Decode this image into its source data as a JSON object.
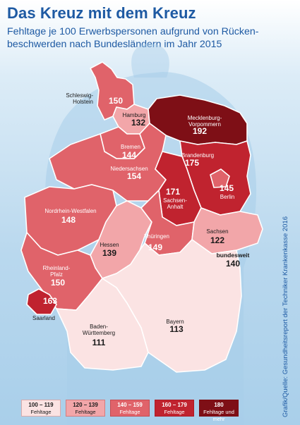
{
  "title": "Das Kreuz mit dem Kreuz",
  "subtitle": "Fehltage je 100 Erwerbspersonen aufgrund von Rücken-beschwerden nach Bundesländern im Jahr 2015",
  "source": "Grafik/Quelle: Gesundheitsreport der Techniker Krankenkasse 2016",
  "colors": {
    "c1": "#fbe3e3",
    "c2": "#f2a6a9",
    "c3": "#e0636a",
    "c4": "#c0232f",
    "c5": "#7e0f16",
    "text_dark": "#1a1a1a",
    "title": "#1e5aa3"
  },
  "chart_data": {
    "type": "choropleth",
    "unit": "Fehltage je 100 Erwerbspersonen",
    "regions": [
      {
        "name": "Schleswig-Holstein",
        "value": 150,
        "label": "Schleswig-\nHolstein",
        "value_label": "150",
        "class": 3
      },
      {
        "name": "Hamburg",
        "value": 132,
        "label": "Hamburg",
        "value_label": "132",
        "class": 2
      },
      {
        "name": "Mecklenburg-Vorpommern",
        "value": 192,
        "label": "Mecklenburg-\nVorpommern",
        "value_label": "192",
        "class": 5
      },
      {
        "name": "Bremen",
        "value": 144,
        "label": "Bremen",
        "value_label": "144",
        "class": 3
      },
      {
        "name": "Niedersachsen",
        "value": 154,
        "label": "Niedersachsen",
        "value_label": "154",
        "class": 3
      },
      {
        "name": "Brandenburg",
        "value": 175,
        "label": "Brandenburg",
        "value_label": "175",
        "class": 4
      },
      {
        "name": "Berlin",
        "value": 145,
        "label": "Berlin",
        "value_label": "145",
        "class": 3
      },
      {
        "name": "Sachsen-Anhalt",
        "value": 171,
        "label": "Sachsen-\nAnhalt",
        "value_label": "171",
        "class": 4
      },
      {
        "name": "Nordrhein-Westfalen",
        "value": 148,
        "label": "Nordrhein-Westfalen",
        "value_label": "148",
        "class": 3
      },
      {
        "name": "Hessen",
        "value": 139,
        "label": "Hessen",
        "value_label": "139",
        "class": 2
      },
      {
        "name": "Thüringen",
        "value": 149,
        "label": "Thüringen",
        "value_label": "149",
        "class": 3
      },
      {
        "name": "Sachsen",
        "value": 122,
        "label": "Sachsen",
        "value_label": "122",
        "class": 2
      },
      {
        "name": "Rheinland-Pfalz",
        "value": 150,
        "label": "Rheinland-\nPfalz",
        "value_label": "150",
        "class": 3
      },
      {
        "name": "Saarland",
        "value": 163,
        "label": "Saarland",
        "value_label": "163",
        "class": 4
      },
      {
        "name": "Baden-Württemberg",
        "value": 111,
        "label": "Baden-\nWürttemberg",
        "value_label": "111",
        "class": 1
      },
      {
        "name": "Bayern",
        "value": 113,
        "label": "Bayern",
        "value_label": "113",
        "class": 1
      }
    ],
    "national": {
      "label": "bundesweit",
      "value": 140,
      "value_label": "140"
    },
    "legend": [
      {
        "range": "100 – 119",
        "unit": "Fehltage",
        "color": "#fbe3e3"
      },
      {
        "range": "120 – 139",
        "unit": "Fehltage",
        "color": "#f2a6a9"
      },
      {
        "range": "140 – 159",
        "unit": "Fehltage",
        "color": "#e0636a"
      },
      {
        "range": "160 – 179",
        "unit": "Fehltage",
        "color": "#c0232f"
      },
      {
        "range": "180",
        "unit": "Fehltage und mehr",
        "color": "#7e0f16"
      }
    ]
  }
}
